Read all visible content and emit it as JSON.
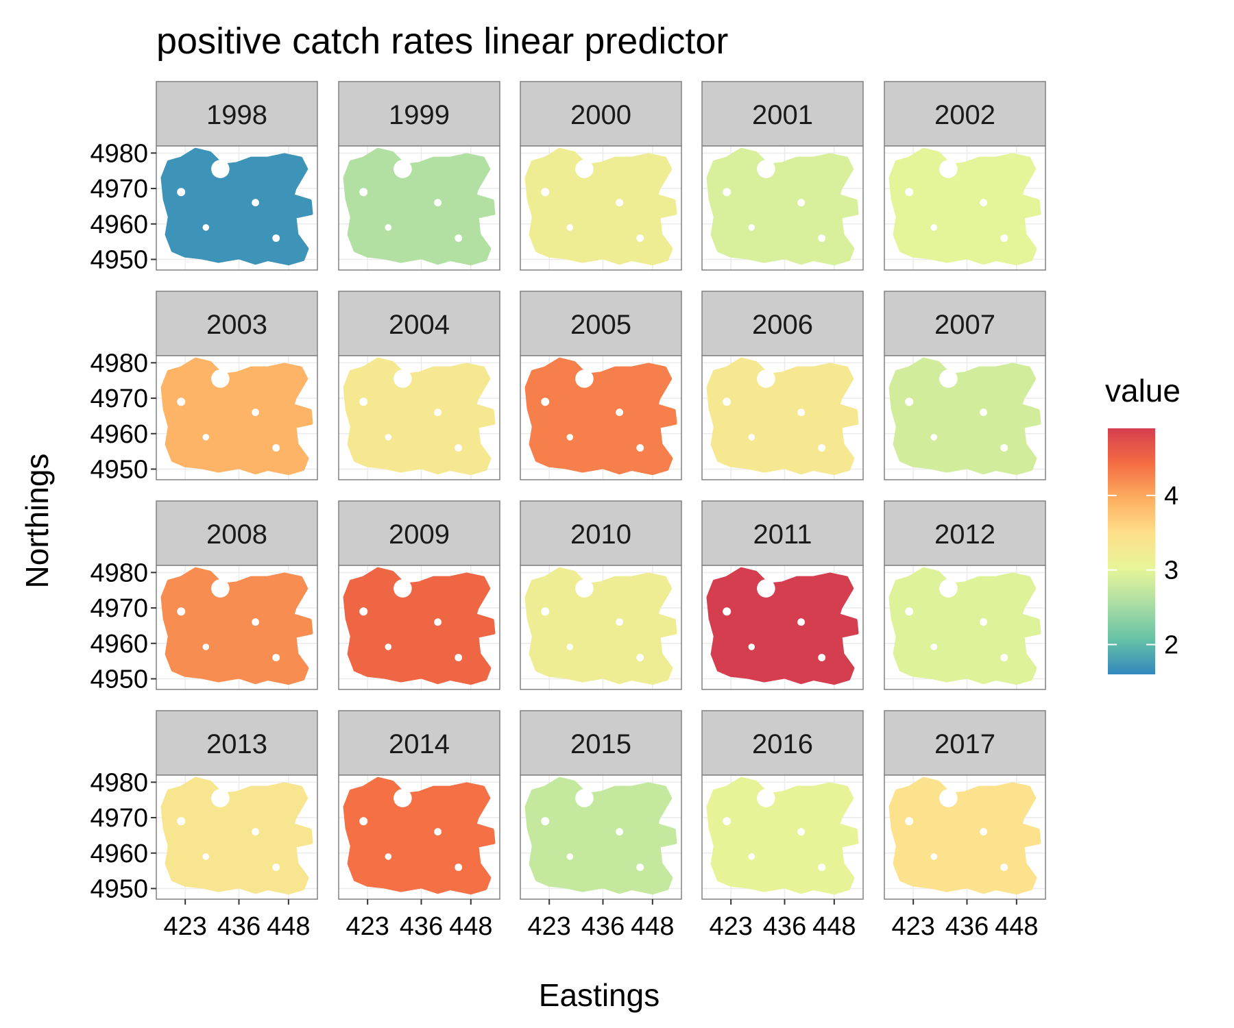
{
  "chart_data": {
    "type": "heatmap",
    "title": "positive catch rates linear predictor",
    "xlabel": "Eastings",
    "ylabel": "Northings",
    "x_ticks": [
      "423",
      "436",
      "448"
    ],
    "y_ticks": [
      "4950",
      "4960",
      "4970",
      "4980"
    ],
    "xlim": [
      416,
      455
    ],
    "ylim": [
      4947,
      4982
    ],
    "grid": true,
    "facet_layout": {
      "rows": 4,
      "cols": 5
    },
    "legend": {
      "title": "value",
      "placement": "right",
      "ticks": [
        "2",
        "3",
        "4"
      ],
      "range": [
        1.6,
        4.9
      ],
      "colors": [
        "#3288bd",
        "#66c2a5",
        "#abdda4",
        "#e6f598",
        "#fee08b",
        "#fdae61",
        "#f46d43",
        "#d53e4f"
      ]
    },
    "panels": [
      {
        "year": "1998",
        "value": 1.7
      },
      {
        "year": "1999",
        "value": 2.6
      },
      {
        "year": "2000",
        "value": 3.2
      },
      {
        "year": "2001",
        "value": 2.9
      },
      {
        "year": "2002",
        "value": 3.0
      },
      {
        "year": "2003",
        "value": 3.9
      },
      {
        "year": "2004",
        "value": 3.3
      },
      {
        "year": "2005",
        "value": 4.3
      },
      {
        "year": "2006",
        "value": 3.3
      },
      {
        "year": "2007",
        "value": 2.85
      },
      {
        "year": "2008",
        "value": 4.2
      },
      {
        "year": "2009",
        "value": 4.5
      },
      {
        "year": "2010",
        "value": 3.2
      },
      {
        "year": "2011",
        "value": 4.9
      },
      {
        "year": "2012",
        "value": 2.95
      },
      {
        "year": "2013",
        "value": 3.35
      },
      {
        "year": "2014",
        "value": 4.4
      },
      {
        "year": "2015",
        "value": 2.75
      },
      {
        "year": "2016",
        "value": 3.05
      },
      {
        "year": "2017",
        "value": 3.45
      }
    ]
  }
}
